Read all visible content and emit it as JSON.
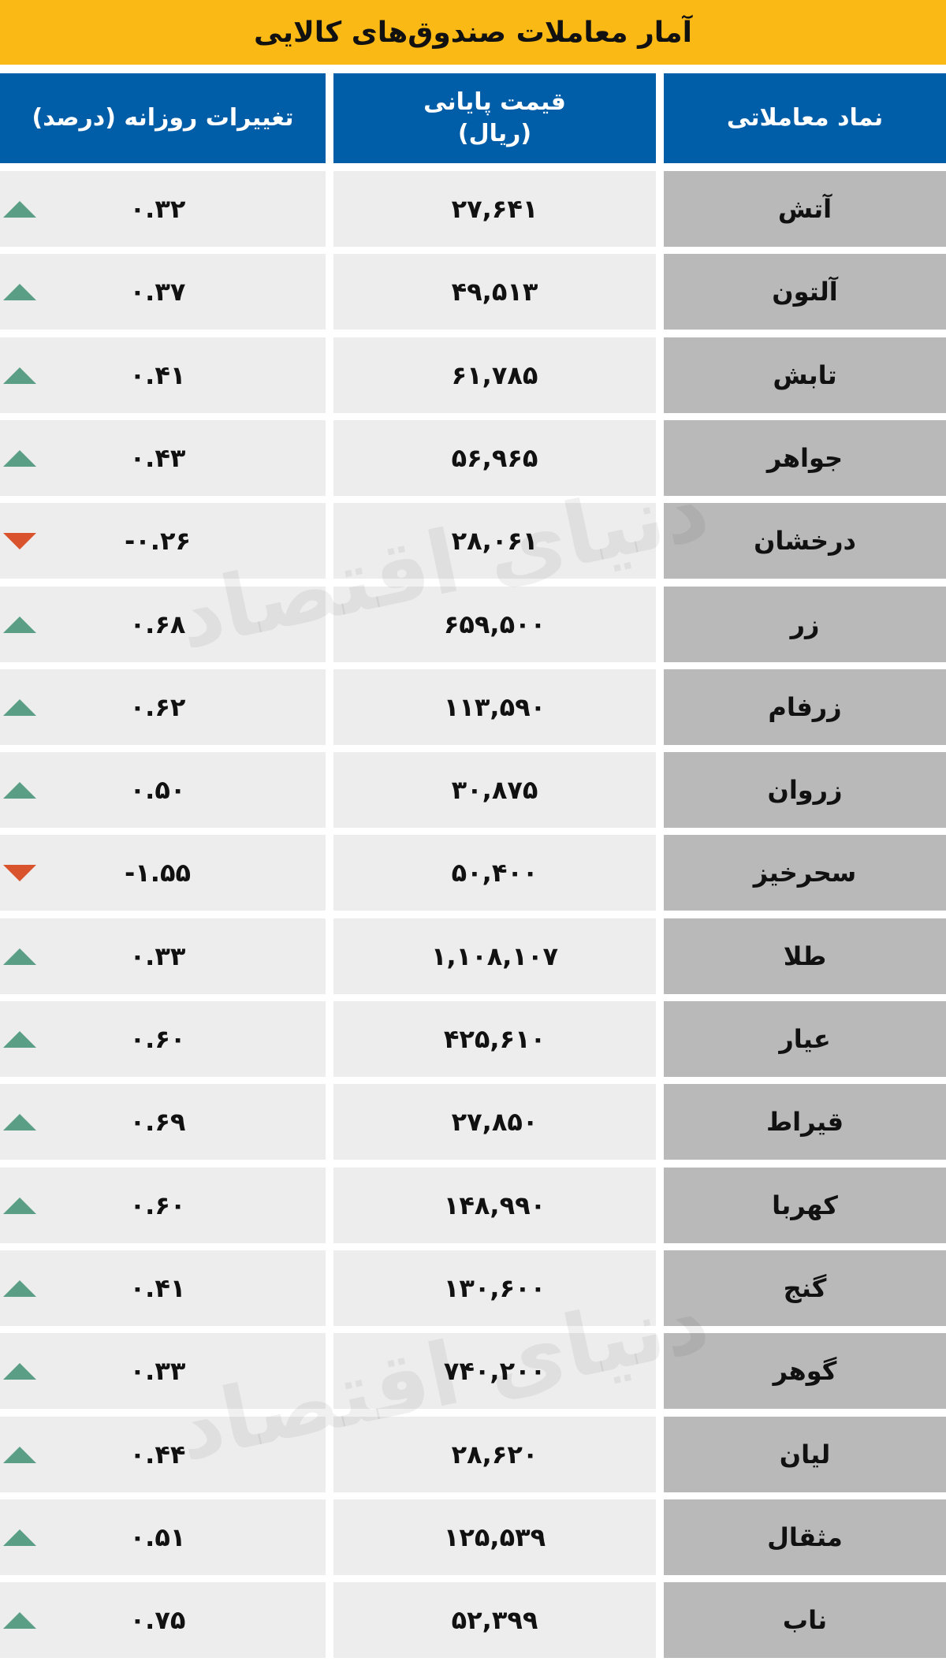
{
  "title": "آمار معاملات صندوق‌های کالایی",
  "headers": {
    "symbol": "نماد معاملاتی",
    "price": "قیمت پایانی\n(ریال)",
    "change": "تغییرات روزانه  (درصد)"
  },
  "watermark": "دنیای اقتصاد",
  "colors": {
    "title_bg": "#fbb915",
    "header_bg": "#005ea8",
    "up": "#5a9e85",
    "down": "#d9532c"
  },
  "rows": [
    {
      "symbol": "آتش",
      "price": "۲۷,۶۴۱",
      "change": "۰.۳۲",
      "direction": "up"
    },
    {
      "symbol": "آلتون",
      "price": "۴۹,۵۱۳",
      "change": "۰.۳۷",
      "direction": "up"
    },
    {
      "symbol": "تابش",
      "price": "۶۱,۷۸۵",
      "change": "۰.۴۱",
      "direction": "up"
    },
    {
      "symbol": "جواهر",
      "price": "۵۶,۹۶۵",
      "change": "۰.۴۳",
      "direction": "up"
    },
    {
      "symbol": "درخشان",
      "price": "۲۸,۰۶۱",
      "change": "-۰.۲۶",
      "direction": "down"
    },
    {
      "symbol": "زر",
      "price": "۶۵۹,۵۰۰",
      "change": "۰.۶۸",
      "direction": "up"
    },
    {
      "symbol": "زرفام",
      "price": "۱۱۳,۵۹۰",
      "change": "۰.۶۲",
      "direction": "up"
    },
    {
      "symbol": "زروان",
      "price": "۳۰,۸۷۵",
      "change": "۰.۵۰",
      "direction": "up"
    },
    {
      "symbol": "سحرخیز",
      "price": "۵۰,۴۰۰",
      "change": "-۱.۵۵",
      "direction": "down"
    },
    {
      "symbol": "طلا",
      "price": "۱,۱۰۸,۱۰۷",
      "change": "۰.۳۳",
      "direction": "up"
    },
    {
      "symbol": "عیار",
      "price": "۴۲۵,۶۱۰",
      "change": "۰.۶۰",
      "direction": "up"
    },
    {
      "symbol": "قیراط",
      "price": "۲۷,۸۵۰",
      "change": "۰.۶۹",
      "direction": "up"
    },
    {
      "symbol": "کهربا",
      "price": "۱۴۸,۹۹۰",
      "change": "۰.۶۰",
      "direction": "up"
    },
    {
      "symbol": "گنج",
      "price": "۱۳۰,۶۰۰",
      "change": "۰.۴۱",
      "direction": "up"
    },
    {
      "symbol": "گوهر",
      "price": "۷۴۰,۲۰۰",
      "change": "۰.۳۳",
      "direction": "up"
    },
    {
      "symbol": "لیان",
      "price": "۲۸,۶۲۰",
      "change": "۰.۴۴",
      "direction": "up"
    },
    {
      "symbol": "مثقال",
      "price": "۱۲۵,۵۳۹",
      "change": "۰.۵۱",
      "direction": "up"
    },
    {
      "symbol": "ناب",
      "price": "۵۲,۳۹۹",
      "change": "۰.۷۵",
      "direction": "up"
    }
  ]
}
